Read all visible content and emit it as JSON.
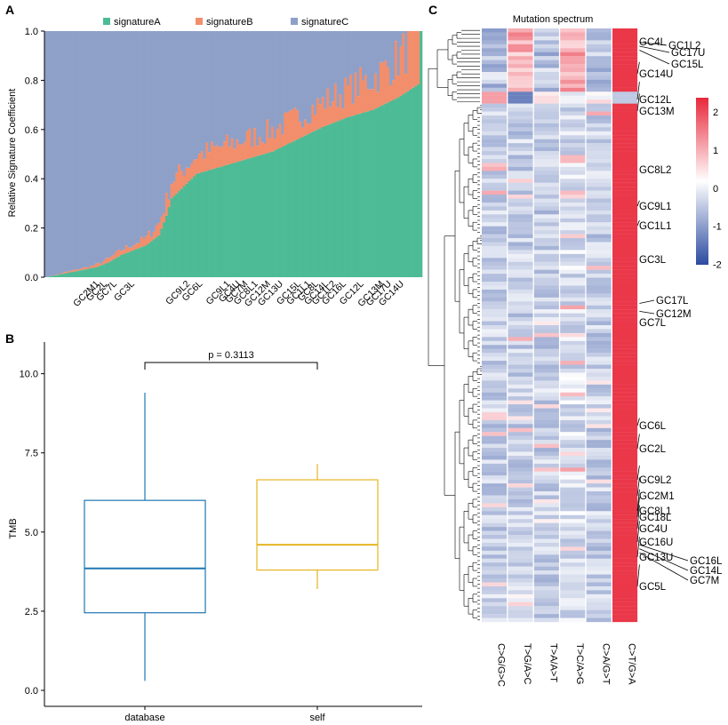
{
  "panels": {
    "a": "A",
    "b": "B",
    "c": "C"
  },
  "chart_data": [
    {
      "id": "A",
      "type": "bar",
      "stacked": true,
      "legend": {
        "position": "top",
        "items": [
          "signatureA",
          "signatureB",
          "signatureC"
        ]
      },
      "colors": {
        "signatureA": "#4dbb95",
        "signatureB": "#f28e6b",
        "signatureC": "#8fa0c8"
      },
      "ylabel": "Relative Signature Coefficient",
      "ylim": [
        0,
        1
      ],
      "yticks": [
        "0.0",
        "0.2",
        "0.4",
        "0.6",
        "0.8",
        "1.0"
      ],
      "n_samples": 150,
      "signatureA_sorted_profile": [
        [
          0,
          0.0
        ],
        [
          10,
          0.02
        ],
        [
          20,
          0.04
        ],
        [
          25,
          0.06
        ],
        [
          30,
          0.09
        ],
        [
          40,
          0.13
        ],
        [
          45,
          0.17
        ],
        [
          48,
          0.25
        ],
        [
          50,
          0.32
        ],
        [
          55,
          0.37
        ],
        [
          60,
          0.42
        ],
        [
          70,
          0.45
        ],
        [
          80,
          0.48
        ],
        [
          90,
          0.51
        ],
        [
          100,
          0.56
        ],
        [
          110,
          0.61
        ],
        [
          120,
          0.65
        ],
        [
          130,
          0.68
        ],
        [
          140,
          0.73
        ],
        [
          149,
          0.79
        ]
      ],
      "signatureB_profile": [
        [
          0,
          0.0
        ],
        [
          20,
          0.01
        ],
        [
          40,
          0.03
        ],
        [
          50,
          0.07
        ],
        [
          70,
          0.08
        ],
        [
          100,
          0.09
        ],
        [
          120,
          0.11
        ],
        [
          135,
          0.14
        ],
        [
          145,
          0.18
        ],
        [
          149,
          0.21
        ]
      ],
      "x_tick_labels": [
        {
          "label": "GC2M1",
          "idx": 20
        },
        {
          "label": "GC2L",
          "idx": 23
        },
        {
          "label": "GC7L",
          "idx": 27
        },
        {
          "label": "GC3L",
          "idx": 34
        },
        {
          "label": "GC9L2",
          "idx": 56
        },
        {
          "label": "GC6L",
          "idx": 61
        },
        {
          "label": "GC9L1",
          "idx": 72
        },
        {
          "label": "GC4U",
          "idx": 76
        },
        {
          "label": "GC7M",
          "idx": 79
        },
        {
          "label": "GC8L1",
          "idx": 83
        },
        {
          "label": "GC12M",
          "idx": 88
        },
        {
          "label": "GC13U",
          "idx": 93
        },
        {
          "label": "GC15L",
          "idx": 100
        },
        {
          "label": "GC1L1",
          "idx": 104
        },
        {
          "label": "GC8L",
          "idx": 107
        },
        {
          "label": "GC14L",
          "idx": 111
        },
        {
          "label": "GC1L2",
          "idx": 114
        },
        {
          "label": "GC16L",
          "idx": 118
        },
        {
          "label": "GC12L",
          "idx": 125
        },
        {
          "label": "GC13M",
          "idx": 133
        },
        {
          "label": "GC17U",
          "idx": 136
        },
        {
          "label": "GC14U",
          "idx": 141
        }
      ]
    },
    {
      "id": "B",
      "type": "box",
      "ylabel": "TMB",
      "ylim": [
        0,
        11
      ],
      "yticks": [
        "0.0",
        "2.5",
        "5.0",
        "7.5",
        "10.0"
      ],
      "categories": [
        "database",
        "self"
      ],
      "boxes": [
        {
          "name": "database",
          "color": "#1f77b4",
          "min": 0.3,
          "q1": 2.45,
          "median": 3.85,
          "q3": 6.0,
          "max": 9.4
        },
        {
          "name": "self",
          "color": "#e6b422",
          "min": 3.2,
          "q1": 3.8,
          "median": 4.6,
          "q3": 6.65,
          "max": 7.15
        }
      ],
      "annotation": "p = 0.3113"
    },
    {
      "id": "C",
      "type": "heatmap",
      "title": "Mutation spectrum",
      "columns": [
        "C>G/G>C",
        "T>G/A>C",
        "T>A/A>T",
        "T>C/A>G",
        "C>A/G>T",
        "C>T/G>A"
      ],
      "colorbar": {
        "ticks": [
          "2",
          "1",
          "0",
          "-1",
          "-2"
        ],
        "range": [
          -2,
          2
        ],
        "colors": [
          "#2b4ba0",
          "#ffffff",
          "#e8283a"
        ]
      },
      "n_rows": 150,
      "row_labels": [
        "GC4L",
        "GC1L2",
        "GC17U",
        "GC15L",
        "GC14U",
        "GC12L",
        "GC13M",
        "GC8L2",
        "GC9L1",
        "GC1L1",
        "GC3L",
        "GC17L",
        "GC12M",
        "GC7L",
        "GC6L",
        "GC2L",
        "GC9L2",
        "GC2M1",
        "GC8L1",
        "GC18L",
        "GC4U",
        "GC16U",
        "GC13U",
        "GC16L",
        "GC14L",
        "GC7M",
        "GC5L"
      ]
    }
  ]
}
